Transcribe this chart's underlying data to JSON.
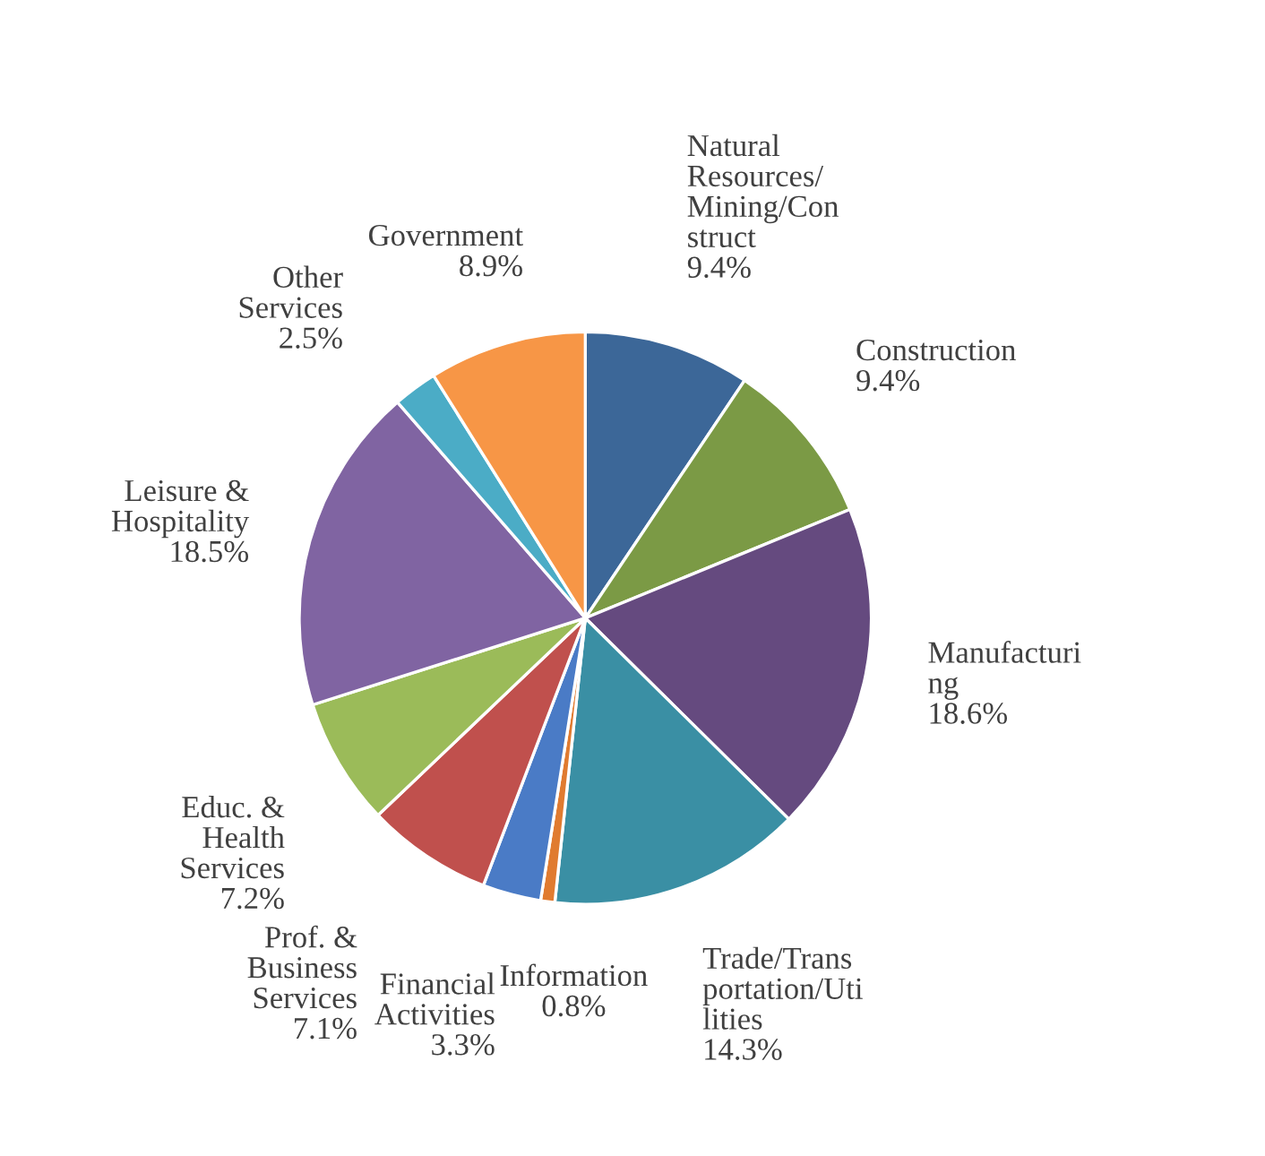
{
  "chart_data": {
    "type": "pie",
    "categories": [
      "Natural\nResources/\nMining/Con\nstruct",
      "Construction",
      "Manufacturi\nng",
      "Trade/Trans\nportation/Uti\nlities",
      "Information",
      "Financial\nActivities",
      "Prof. &\nBusiness\nServices",
      "Educ. &\nHealth\nServices",
      "Leisure &\nHospitality",
      "Other\nServices",
      "Government"
    ],
    "values": [
      9.4,
      9.4,
      18.6,
      14.3,
      0.8,
      3.3,
      7.1,
      7.2,
      18.5,
      2.5,
      8.9
    ],
    "colors": [
      "#3c6798",
      "#7b9a45",
      "#654a7f",
      "#3a8fa4",
      "#e07b30",
      "#4a7bc6",
      "#c0504d",
      "#9bbb59",
      "#8064a2",
      "#4bacc6",
      "#f79646"
    ],
    "value_labels": [
      "9.4%",
      "9.4%",
      "18.6%",
      "14.3%",
      "0.8%",
      "3.3%",
      "7.1%",
      "7.2%",
      "18.5%",
      "2.5%",
      "8.9%"
    ],
    "legend": false
  }
}
